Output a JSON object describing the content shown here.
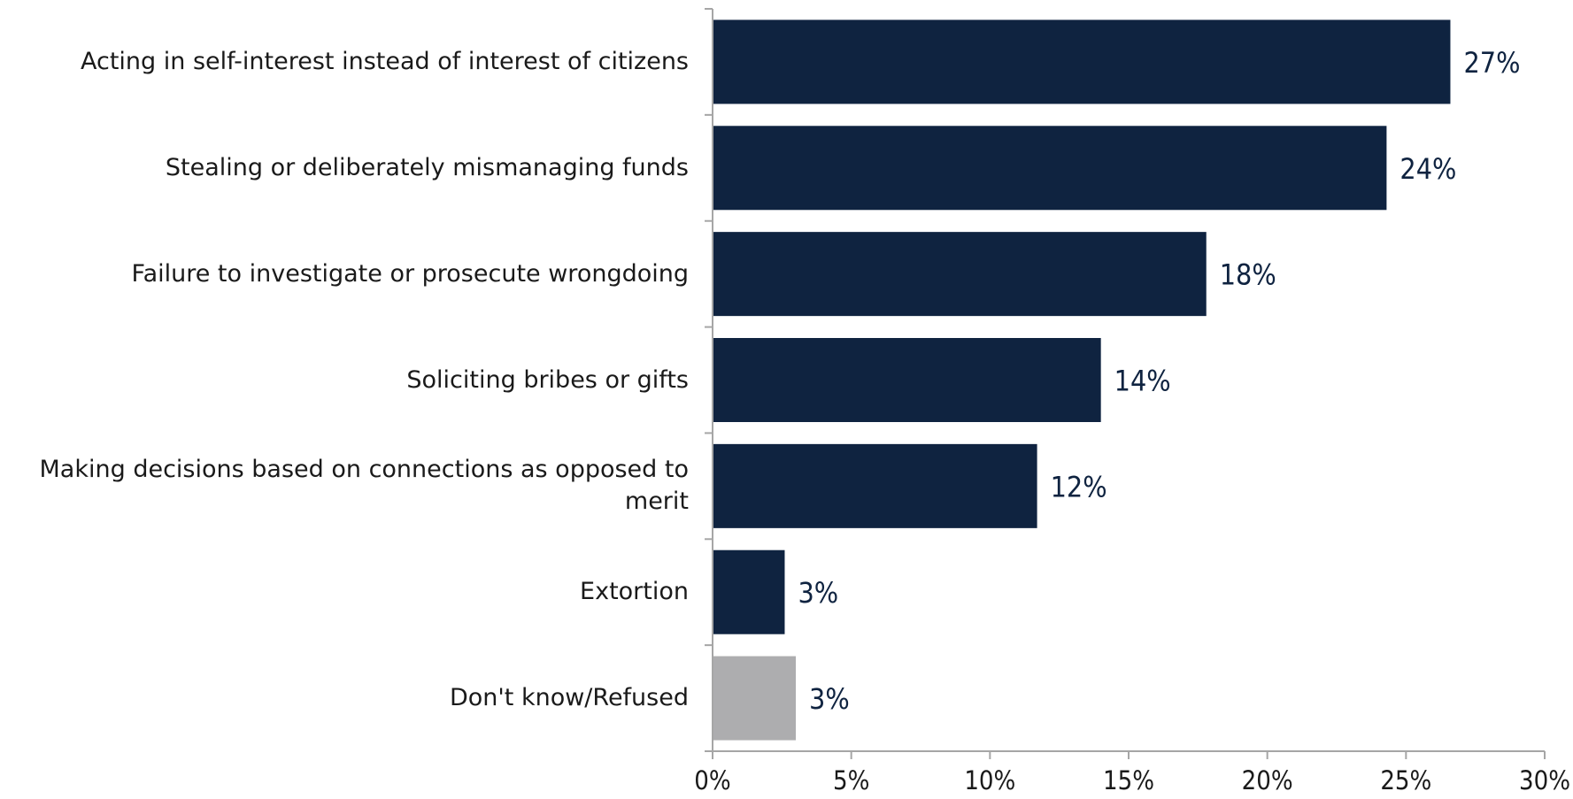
{
  "chart_data": {
    "type": "bar",
    "orientation": "horizontal",
    "categories": [
      "Acting in self-interest instead of interest of citizens",
      "Stealing or deliberately mismanaging funds",
      "Failure to investigate or prosecute wrongdoing",
      "Soliciting bribes or gifts",
      "Making decisions based on connections as opposed to merit",
      "Extortion",
      "Don't know/Refused"
    ],
    "values": [
      26.6,
      24.3,
      17.8,
      14.0,
      11.7,
      2.6,
      3.0
    ],
    "value_labels": [
      "27%",
      "24%",
      "18%",
      "14%",
      "12%",
      "3%",
      "3%"
    ],
    "bar_colors": [
      "#0f2340",
      "#0f2340",
      "#0f2340",
      "#0f2340",
      "#0f2340",
      "#0f2340",
      "#adadaf"
    ],
    "xlim": [
      0,
      30
    ],
    "xticks": [
      0,
      5,
      10,
      15,
      20,
      25,
      30
    ],
    "xtick_labels": [
      "0%",
      "5%",
      "10%",
      "15%",
      "20%",
      "25%",
      "30%"
    ],
    "title": "",
    "xlabel": "",
    "ylabel": "",
    "grid": false,
    "legend": "none",
    "axis_color": "#a6a6a6"
  }
}
